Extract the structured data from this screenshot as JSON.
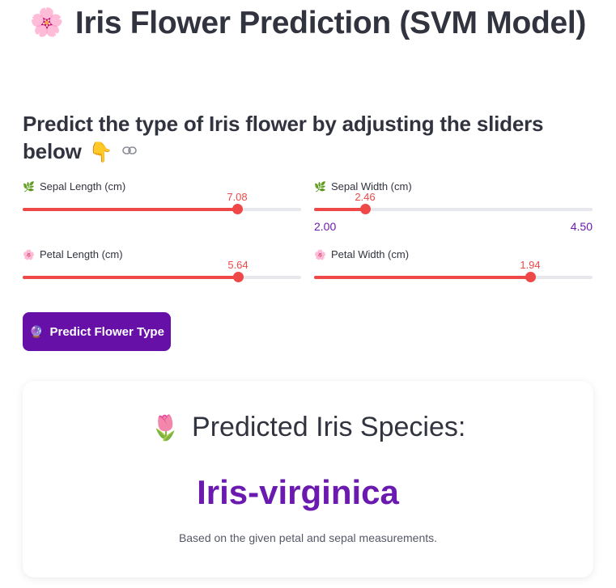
{
  "header": {
    "title_emoji": "🌸",
    "title": "Iris Flower Prediction (SVM Model)",
    "subtitle": "Predict the type of Iris flower by adjusting the sliders below",
    "subtitle_emoji": "👇",
    "link_icon": "link-icon"
  },
  "sliders": [
    {
      "emoji": "🌿",
      "label": "Sepal Length (cm)",
      "value": "7.08",
      "fraction": 0.77
    },
    {
      "emoji": "🌿",
      "label": "Sepal Width (cm)",
      "value": "2.46",
      "fraction": 0.184,
      "min": "2.00",
      "max": "4.50"
    },
    {
      "emoji": "🌸",
      "label": "Petal Length (cm)",
      "value": "5.64",
      "fraction": 0.773
    },
    {
      "emoji": "🌸",
      "label": "Petal Width (cm)",
      "value": "1.94",
      "fraction": 0.776
    }
  ],
  "button": {
    "emoji": "🔮",
    "label": "Predict Flower Type"
  },
  "result": {
    "emoji": "🌷",
    "heading": "Predicted Iris Species:",
    "species": "Iris-virginica",
    "note": "Based on the given petal and sepal measurements."
  },
  "colors": {
    "accent": "#ef4848",
    "purple": "#6a1aae",
    "button": "#6610a8",
    "text": "#31333f"
  }
}
